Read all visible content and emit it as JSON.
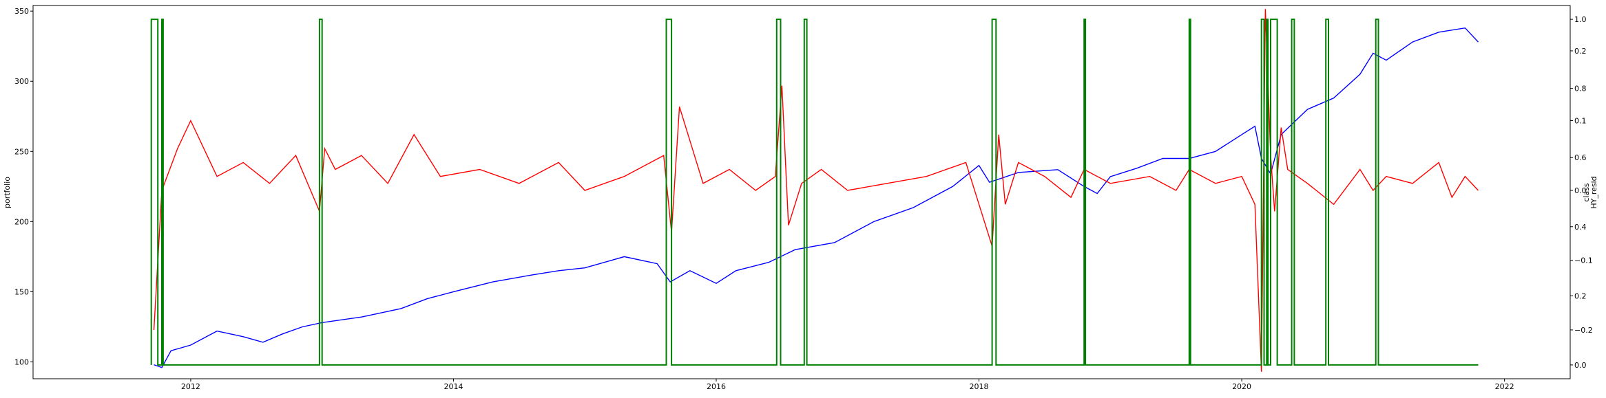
{
  "chart_data": {
    "type": "line",
    "xlabel": "",
    "x_ticks": [
      "2012",
      "2014",
      "2016",
      "2018",
      "2020",
      "2022"
    ],
    "x_tick_years": [
      2012,
      2014,
      2016,
      2018,
      2020,
      2022
    ],
    "x_range": [
      2010.8,
      2022.5
    ],
    "y_left": {
      "label": "portfolio",
      "ticks": [
        "100",
        "150",
        "200",
        "250",
        "300",
        "350"
      ],
      "tick_values": [
        100,
        150,
        200,
        250,
        300,
        350
      ],
      "range": [
        88,
        354
      ]
    },
    "y_right_outer": {
      "label": "class",
      "ticks": [
        "0.0",
        "0.2",
        "0.4",
        "0.6",
        "0.8",
        "1.0"
      ],
      "tick_values": [
        0.0,
        0.2,
        0.4,
        0.6,
        0.8,
        1.0
      ],
      "range": [
        -0.04,
        1.04
      ]
    },
    "y_right_inner": {
      "label": "HY_resid",
      "ticks": [
        "−0.2",
        "−0.1",
        "0.0",
        "0.1",
        "0.2"
      ],
      "tick_values": [
        -0.2,
        -0.1,
        0.0,
        0.1,
        0.2
      ],
      "range": [
        -0.27,
        0.265
      ]
    },
    "series": [
      {
        "name": "portfolio",
        "axis": "left",
        "color": "#0000ff",
        "x": [
          2011.72,
          2011.78,
          2011.85,
          2012.0,
          2012.2,
          2012.4,
          2012.55,
          2012.7,
          2012.85,
          2013.0,
          2013.3,
          2013.6,
          2013.8,
          2014.0,
          2014.3,
          2014.6,
          2014.8,
          2015.0,
          2015.3,
          2015.55,
          2015.65,
          2015.8,
          2016.0,
          2016.15,
          2016.4,
          2016.6,
          2016.9,
          2017.2,
          2017.5,
          2017.8,
          2018.0,
          2018.08,
          2018.3,
          2018.6,
          2018.8,
          2018.9,
          2019.0,
          2019.2,
          2019.4,
          2019.6,
          2019.8,
          2020.0,
          2020.1,
          2020.15,
          2020.22,
          2020.3,
          2020.5,
          2020.7,
          2020.9,
          2021.0,
          2021.1,
          2021.3,
          2021.5,
          2021.7,
          2021.8
        ],
        "values": [
          98,
          96,
          108,
          112,
          122,
          118,
          114,
          120,
          125,
          128,
          132,
          138,
          145,
          150,
          157,
          162,
          165,
          167,
          175,
          170,
          157,
          165,
          156,
          165,
          171,
          180,
          185,
          200,
          210,
          225,
          240,
          228,
          235,
          237,
          225,
          220,
          232,
          238,
          245,
          245,
          250,
          262,
          268,
          245,
          234,
          262,
          280,
          288,
          305,
          320,
          315,
          328,
          335,
          338,
          328
        ]
      },
      {
        "name": "HY_resid",
        "axis": "right_inner",
        "color": "#ff0000",
        "x": [
          2011.72,
          2011.78,
          2011.9,
          2012.0,
          2012.2,
          2012.4,
          2012.6,
          2012.8,
          2012.98,
          2013.02,
          2013.1,
          2013.3,
          2013.5,
          2013.7,
          2013.9,
          2014.2,
          2014.5,
          2014.8,
          2015.0,
          2015.3,
          2015.6,
          2015.66,
          2015.72,
          2015.9,
          2016.1,
          2016.3,
          2016.45,
          2016.5,
          2016.55,
          2016.65,
          2016.8,
          2017.0,
          2017.3,
          2017.6,
          2017.9,
          2018.1,
          2018.15,
          2018.2,
          2018.3,
          2018.5,
          2018.7,
          2018.8,
          2019.0,
          2019.3,
          2019.5,
          2019.6,
          2019.8,
          2020.0,
          2020.1,
          2020.15,
          2020.18,
          2020.22,
          2020.25,
          2020.3,
          2020.35,
          2020.5,
          2020.7,
          2020.9,
          2021.0,
          2021.1,
          2021.3,
          2021.5,
          2021.6,
          2021.7,
          2021.8
        ],
        "values": [
          -0.2,
          0.0,
          0.06,
          0.1,
          0.02,
          0.04,
          0.01,
          0.05,
          -0.03,
          0.06,
          0.03,
          0.05,
          0.01,
          0.08,
          0.02,
          0.03,
          0.01,
          0.04,
          0.0,
          0.02,
          0.05,
          -0.06,
          0.12,
          0.01,
          0.03,
          0.0,
          0.02,
          0.15,
          -0.05,
          0.01,
          0.03,
          0.0,
          0.01,
          0.02,
          0.04,
          -0.08,
          0.08,
          -0.02,
          0.04,
          0.02,
          -0.01,
          0.03,
          0.01,
          0.02,
          0.0,
          0.03,
          0.01,
          0.02,
          -0.02,
          -0.26,
          0.26,
          0.05,
          -0.03,
          0.09,
          0.03,
          0.01,
          -0.02,
          0.03,
          0.0,
          0.02,
          0.01,
          0.04,
          -0.01,
          0.02,
          0.0
        ]
      },
      {
        "name": "class",
        "axis": "right_outer",
        "color": "#008000",
        "step_intervals": [
          [
            2011.7,
            2011.75
          ],
          [
            2011.78,
            2011.79
          ],
          [
            2012.98,
            2013.0
          ],
          [
            2015.62,
            2015.66
          ],
          [
            2016.46,
            2016.49
          ],
          [
            2016.67,
            2016.69
          ],
          [
            2018.1,
            2018.13
          ],
          [
            2018.8,
            2018.81
          ],
          [
            2019.6,
            2019.61
          ],
          [
            2020.15,
            2020.17
          ],
          [
            2020.19,
            2020.2
          ],
          [
            2020.22,
            2020.27
          ],
          [
            2020.38,
            2020.4
          ],
          [
            2020.64,
            2020.66
          ],
          [
            2021.02,
            2021.04
          ]
        ],
        "x_start": 2011.7,
        "x_end": 2021.8
      }
    ]
  }
}
